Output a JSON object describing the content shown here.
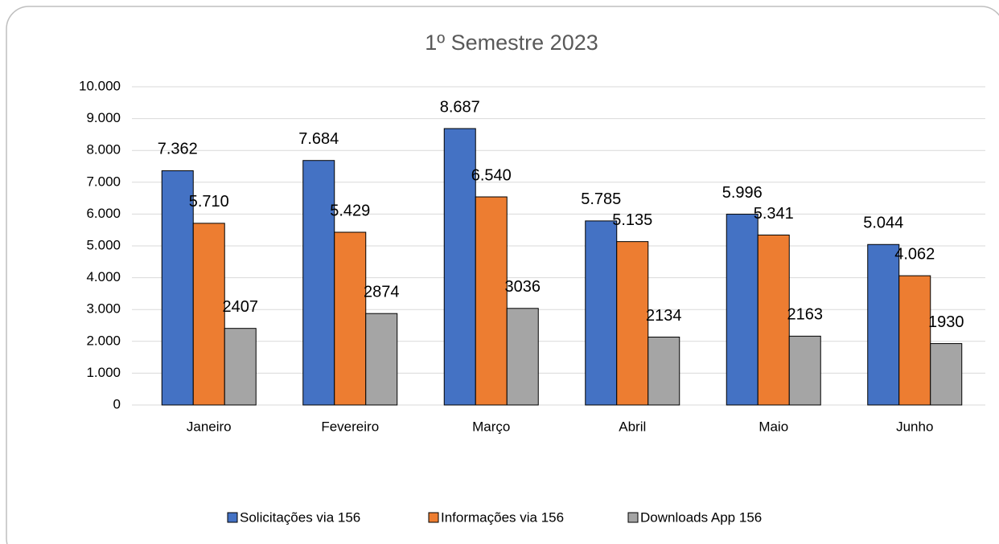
{
  "chart_data": {
    "type": "bar",
    "title": "1º Semestre 2023",
    "categories": [
      "Janeiro",
      "Fevereiro",
      "Março",
      "Abril",
      "Maio",
      "Junho"
    ],
    "series": [
      {
        "name": "Solicitações via 156",
        "color": "#4472c4",
        "values": [
          7362,
          7684,
          8687,
          5785,
          5996,
          5044
        ],
        "value_labels": [
          "7.362",
          "7.684",
          "8.687",
          "5.785",
          "5.996",
          "5.044"
        ]
      },
      {
        "name": "Informações via 156",
        "color": "#ed7d31",
        "values": [
          5710,
          5429,
          6540,
          5135,
          5341,
          4062
        ],
        "value_labels": [
          "5.710",
          "5.429",
          "6.540",
          "5.135",
          "5.341",
          "4.062"
        ]
      },
      {
        "name": "Downloads App 156",
        "color": "#a5a5a5",
        "values": [
          2407,
          2874,
          3036,
          2134,
          2163,
          1930
        ]
      }
    ],
    "ylim": [
      0,
      10000
    ],
    "yticks": [
      0,
      {
        "value": 1000,
        "label": "1.000"
      },
      {
        "value": 2000,
        "label": "2.000"
      },
      {
        "value": 3000,
        "label": "3.000"
      },
      {
        "value": 4000,
        "label": "4.000"
      },
      {
        "value": 5000,
        "label": "5.000"
      },
      {
        "value": 6000,
        "label": "6.000"
      },
      {
        "value": 7000,
        "label": "7.000"
      },
      {
        "value": 8000,
        "label": "8.000"
      },
      {
        "value": 9000,
        "label": "9.000"
      },
      {
        "value": 10000,
        "label": "10.000"
      }
    ],
    "grid": true,
    "legend": "bottom"
  }
}
